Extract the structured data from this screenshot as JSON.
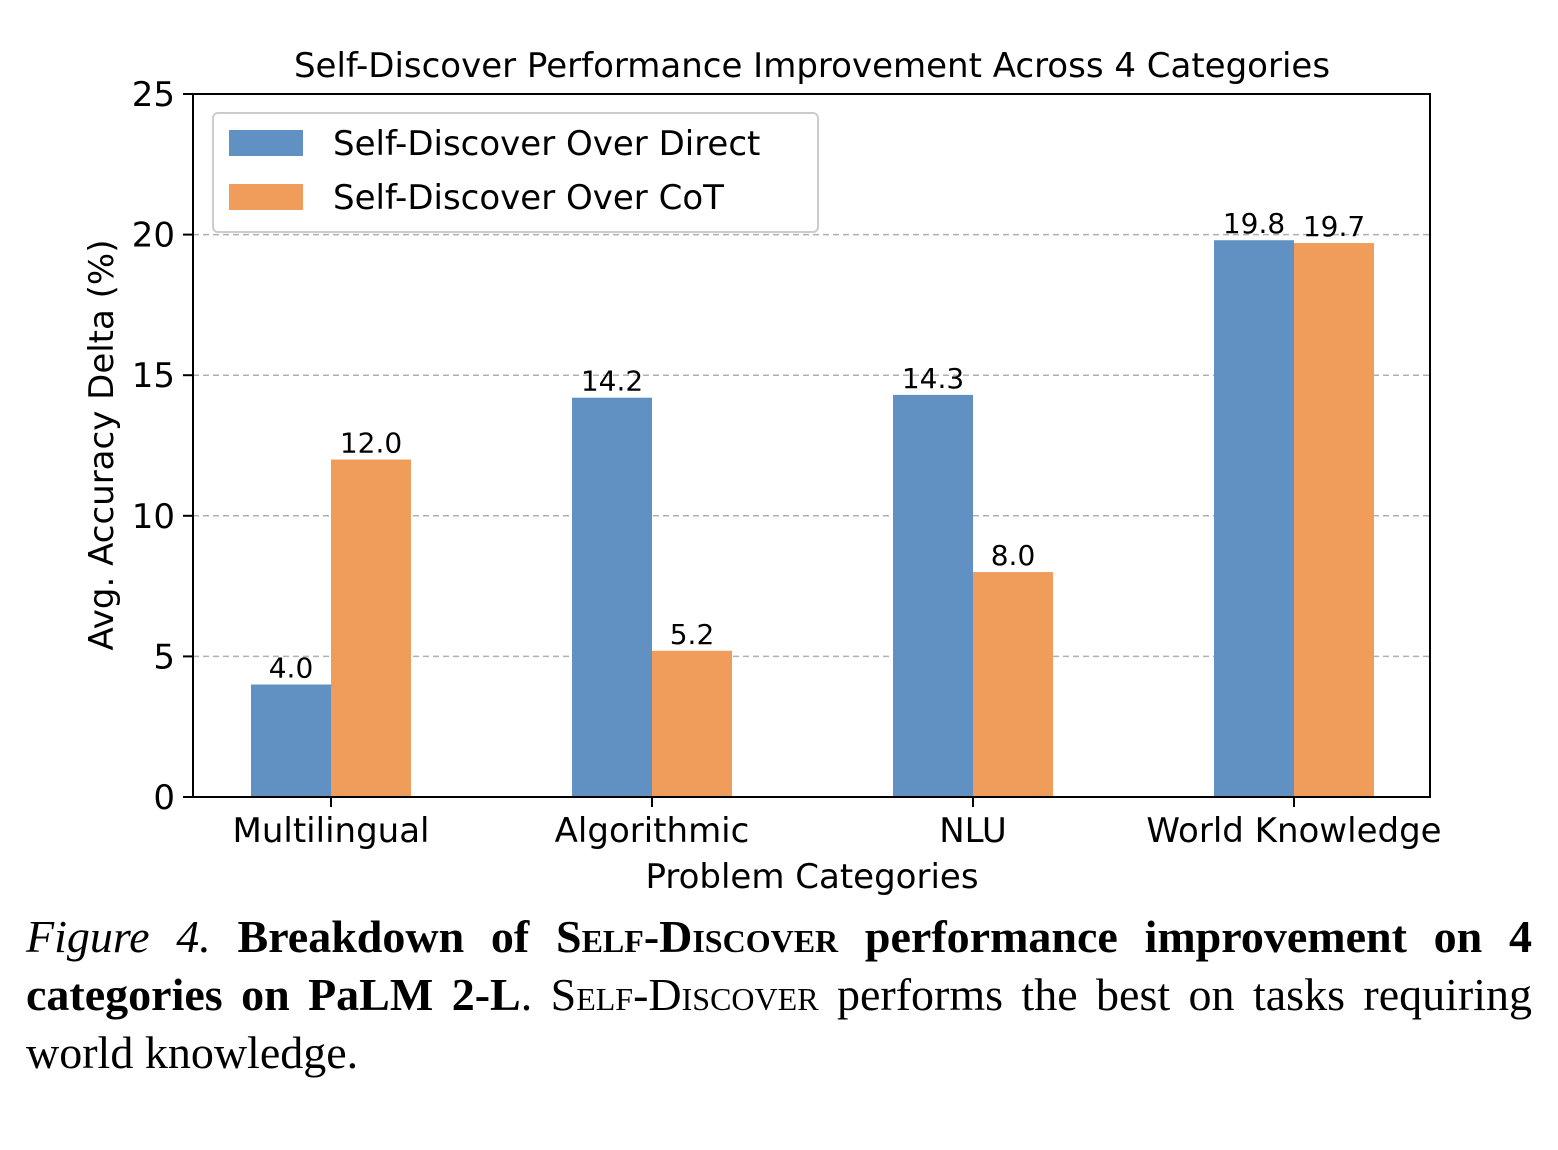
{
  "chart_data": {
    "type": "bar",
    "title": "Self-Discover Performance Improvement Across 4 Categories",
    "xlabel": "Problem Categories",
    "ylabel": "Avg. Accuracy Delta (%)",
    "categories": [
      "Multilingual",
      "Algorithmic",
      "NLU",
      "World Knowledge"
    ],
    "series": [
      {
        "name": "Self-Discover Over Direct",
        "values": [
          4.0,
          14.2,
          14.3,
          19.8
        ],
        "labels": [
          "4.0",
          "14.2",
          "14.3",
          "19.8"
        ],
        "color": "#6191c2"
      },
      {
        "name": "Self-Discover Over CoT",
        "values": [
          12.0,
          5.2,
          8.0,
          19.7
        ],
        "labels": [
          "12.0",
          "5.2",
          "8.0",
          "19.7"
        ],
        "color": "#f09d5c"
      }
    ],
    "ylim": [
      0,
      25
    ],
    "yticks": [
      "0",
      "5",
      "10",
      "15",
      "20",
      "25"
    ],
    "grid": "y-dashed",
    "legend": "top-left"
  },
  "caption": {
    "figure_label": "Figure 4.",
    "bold_1": "Breakdown of ",
    "bold_sc": "Self-Discover",
    "bold_2": " performance improvement on 4 categories on PaLM 2-L",
    "plain_1": ". ",
    "plain_sc": "Self-Discover",
    "plain_2": " performs the best on tasks requiring world knowledge."
  }
}
